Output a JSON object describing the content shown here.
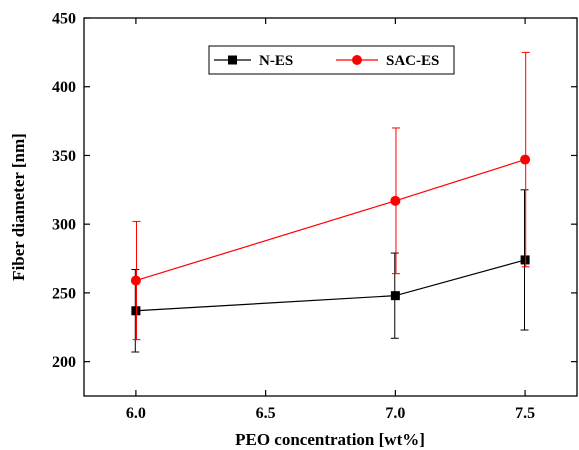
{
  "chart_data": {
    "type": "line",
    "title": "",
    "xlabel": "PEO concentration [wt%]",
    "ylabel": "Fiber diameter [nm]",
    "xlim": [
      5.8,
      7.7
    ],
    "ylim": [
      175,
      450
    ],
    "xticks": [
      6.0,
      6.5,
      7.0,
      7.5
    ],
    "xtick_labels": [
      "6.0",
      "6.5",
      "7.0",
      "7.5"
    ],
    "yticks": [
      200,
      250,
      300,
      350,
      400,
      450
    ],
    "ytick_labels": [
      "200",
      "250",
      "300",
      "350",
      "400",
      "450"
    ],
    "grid": false,
    "legend_position": "top-center",
    "series": [
      {
        "name": "N-ES",
        "color": "#000000",
        "marker": "square",
        "x": [
          6.0,
          7.0,
          7.5
        ],
        "y": [
          237,
          248,
          274
        ],
        "err": [
          30,
          31,
          51
        ]
      },
      {
        "name": "SAC-ES",
        "color": "#ff0000",
        "marker": "circle",
        "x": [
          6.0,
          7.0,
          7.5
        ],
        "y": [
          259,
          317,
          347
        ],
        "err": [
          43,
          53,
          78
        ]
      }
    ]
  }
}
